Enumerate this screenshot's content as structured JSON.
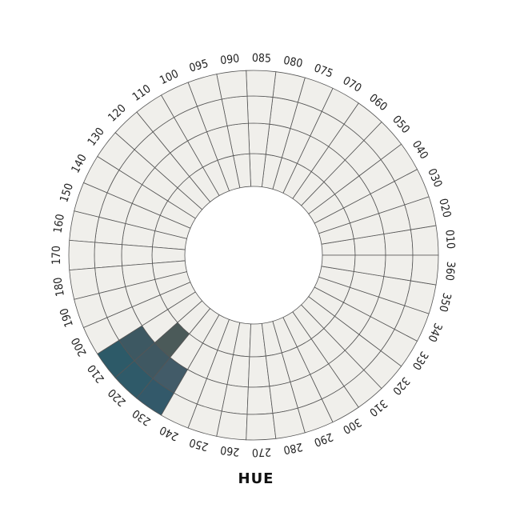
{
  "chart_data": {
    "type": "heatmap",
    "projection": "polar",
    "title": "",
    "xlabel": "HUE",
    "hue_labels": [
      "010",
      "020",
      "030",
      "040",
      "050",
      "060",
      "070",
      "075",
      "080",
      "085",
      "090",
      "095",
      "100",
      "110",
      "120",
      "130",
      "140",
      "150",
      "160",
      "170",
      "180",
      "190",
      "200",
      "210",
      "220",
      "230",
      "240",
      "250",
      "260",
      "270",
      "280",
      "290",
      "300",
      "310",
      "320",
      "330",
      "340",
      "350",
      "360"
    ],
    "rings": 4,
    "empty_color": "#f0efeb",
    "grid_color": "#555555",
    "filled_cells": [
      {
        "hue": "210",
        "ring": 4,
        "value": 1.0,
        "color": "#2d5a68"
      },
      {
        "hue": "220",
        "ring": 4,
        "value": 1.0,
        "color": "#2f5a69"
      },
      {
        "hue": "230",
        "ring": 4,
        "value": 0.95,
        "color": "#33596a"
      },
      {
        "hue": "210",
        "ring": 3,
        "value": 0.7,
        "color": "#3d5862"
      },
      {
        "hue": "220",
        "ring": 3,
        "value": 0.7,
        "color": "#3f5862"
      },
      {
        "hue": "230",
        "ring": 3,
        "value": 0.75,
        "color": "#425b68"
      },
      {
        "hue": "220",
        "ring": 2,
        "value": 0.5,
        "color": "#4b5a59"
      }
    ]
  }
}
